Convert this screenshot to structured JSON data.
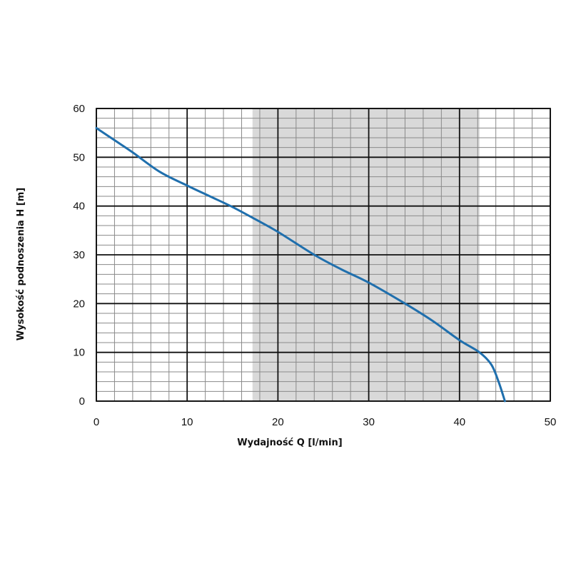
{
  "chart_data": {
    "type": "line",
    "title": "",
    "xlabel": "Wydajność Q [l/min]",
    "ylabel": "Wysokość podnoszenia H [m]",
    "xlim": [
      0,
      50
    ],
    "ylim": [
      0,
      60
    ],
    "x_ticks": [
      "0",
      "10",
      "20",
      "30",
      "40",
      "50"
    ],
    "y_ticks": [
      "0",
      "10",
      "20",
      "30",
      "40",
      "50",
      "60"
    ],
    "grid": true,
    "minor_grid": true,
    "highlight_band": {
      "x_from": 17.2,
      "x_to": 42.2,
      "color": "#d9d9d9"
    },
    "series": [
      {
        "color": "#1f6fad",
        "points": [
          [
            0,
            56
          ],
          [
            2,
            53.5
          ],
          [
            4,
            51
          ],
          [
            7,
            47
          ],
          [
            10,
            44.2
          ],
          [
            12.5,
            42
          ],
          [
            15,
            39.8
          ],
          [
            17.5,
            37.3
          ],
          [
            20,
            34.7
          ],
          [
            24,
            30
          ],
          [
            27,
            27
          ],
          [
            30,
            24.3
          ],
          [
            34,
            20
          ],
          [
            37,
            16.5
          ],
          [
            40,
            12.5
          ],
          [
            42.2,
            10
          ],
          [
            43.5,
            7.5
          ],
          [
            44.3,
            4
          ],
          [
            45,
            0
          ]
        ]
      }
    ]
  }
}
